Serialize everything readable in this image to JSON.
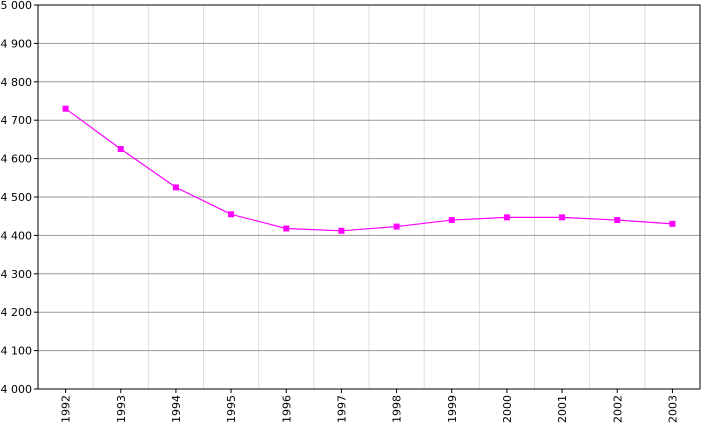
{
  "chart_data": {
    "type": "line",
    "categories": [
      "1992",
      "1993",
      "1994",
      "1995",
      "1996",
      "1997",
      "1998",
      "1999",
      "2000",
      "2001",
      "2002",
      "2003"
    ],
    "series": [
      {
        "color": "#ff00ff",
        "values": [
          4730,
          4625,
          4525,
          4455,
          4418,
          4412,
          4423,
          4440,
          4447,
          4447,
          4440,
          4430
        ]
      }
    ],
    "ylim": [
      4000,
      5000
    ],
    "yticks": [
      {
        "value": 4000,
        "label": "4 000"
      },
      {
        "value": 4100,
        "label": "4 100"
      },
      {
        "value": 4200,
        "label": "4 200"
      },
      {
        "value": 4300,
        "label": "4 300"
      },
      {
        "value": 4400,
        "label": "4 400"
      },
      {
        "value": 4500,
        "label": "4 500"
      },
      {
        "value": 4600,
        "label": "4 600"
      },
      {
        "value": 4700,
        "label": "4 700"
      },
      {
        "value": 4800,
        "label": "4 800"
      },
      {
        "value": 4900,
        "label": "4 900"
      },
      {
        "value": 5000,
        "label": "5 000"
      }
    ],
    "grid": true
  }
}
